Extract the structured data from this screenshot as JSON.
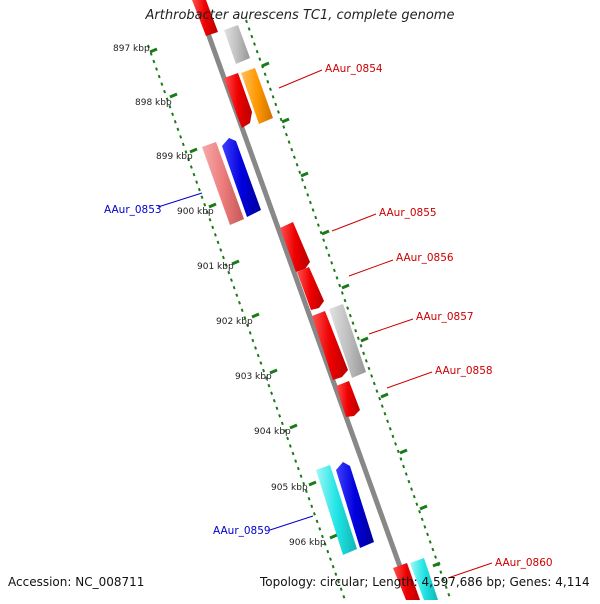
{
  "title": "Arthrobacter aurescens TC1, complete genome",
  "accession": "Accession: NC_008711",
  "topology": "Topology: circular; Length: 4,597,686 bp; Genes: 4,114",
  "scale_labels": [
    "897 kbp",
    "898 kbp",
    "899 kbp",
    "900 kbp",
    "901 kbp",
    "902 kbp",
    "903 kbp",
    "904 kbp",
    "905 kbp",
    "906 kbp"
  ],
  "gene_labels": {
    "g0854": "AAur_0854",
    "g0853": "AAur_0853",
    "g0855": "AAur_0855",
    "g0856": "AAur_0856",
    "g0857": "AAur_0857",
    "g0858": "AAur_0858",
    "g0859": "AAur_0859",
    "g0860": "AAur_0860"
  },
  "colors": {
    "backbone": "#8a8a8a",
    "ruler": "#1a7a1a",
    "red": "#ee0000",
    "grey": "#bdbdbd",
    "orange": "#ff9900",
    "pink": "#ec7d7d",
    "blue": "#0000dd",
    "cyan": "#22e5e5",
    "label_red": "#cc0000",
    "label_blue": "#0000cc"
  }
}
